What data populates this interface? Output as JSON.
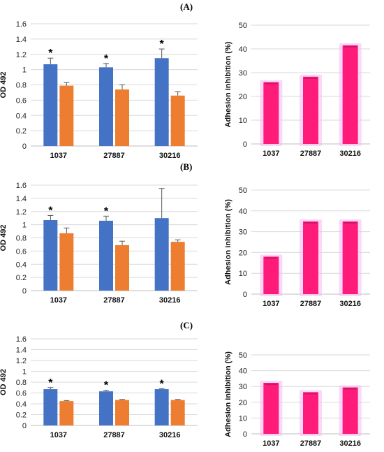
{
  "figure": {
    "panel_labels": [
      "(A)",
      "(B)",
      "(C)"
    ]
  },
  "colors": {
    "od_series_1": "#4472C4",
    "od_series_2": "#ED7D31",
    "inhibition_bar": "#FF1B7A",
    "inhibition_glow": "#F7B8F2",
    "error_bar": "#555555",
    "gridline": "#D9D9D9"
  },
  "chart_data": [
    {
      "id": "A-od",
      "type": "bar",
      "ylabel": "OD 492",
      "xlabel": "",
      "categories": [
        "1037",
        "27887",
        "30216"
      ],
      "ylim": [
        0,
        1.6
      ],
      "yticks": [
        "0",
        "0.2",
        "0.4",
        "0.6",
        "0.8",
        "1",
        "1.2",
        "1.4",
        "1.6"
      ],
      "grid": true,
      "series": [
        {
          "values": [
            1.07,
            1.03,
            1.15
          ],
          "errors": [
            0.08,
            0.05,
            0.12
          ]
        },
        {
          "values": [
            0.79,
            0.74,
            0.66
          ],
          "errors": [
            0.04,
            0.06,
            0.05
          ]
        }
      ],
      "annotations": [
        "*",
        "*",
        "*"
      ]
    },
    {
      "id": "A-inhibition",
      "type": "bar",
      "ylabel": "Adhesion inhibition (%)",
      "xlabel": "",
      "categories": [
        "1037",
        "27887",
        "30216"
      ],
      "values": [
        26,
        28.3,
        41.5
      ],
      "ylim": [
        0,
        50
      ],
      "yticks": [
        "0",
        "10",
        "20",
        "30",
        "40",
        "50"
      ],
      "grid": true
    },
    {
      "id": "B-od",
      "type": "bar",
      "ylabel": "OD 492",
      "xlabel": "",
      "categories": [
        "1037",
        "27887",
        "30216"
      ],
      "ylim": [
        0,
        1.6
      ],
      "yticks": [
        "0",
        "0.2",
        "0.4",
        "0.6",
        "0.8",
        "1",
        "1.2",
        "1.4",
        "1.6"
      ],
      "grid": true,
      "series": [
        {
          "values": [
            1.07,
            1.06,
            1.1
          ],
          "errors": [
            0.07,
            0.07,
            0.45
          ]
        },
        {
          "values": [
            0.87,
            0.69,
            0.74
          ],
          "errors": [
            0.08,
            0.06,
            0.03
          ]
        }
      ],
      "annotations": [
        "*",
        "*",
        ""
      ]
    },
    {
      "id": "B-inhibition",
      "type": "bar",
      "ylabel": "Adhesion inhibition (%)",
      "xlabel": "",
      "categories": [
        "1037",
        "27887",
        "30216"
      ],
      "values": [
        18,
        34.9,
        34.9
      ],
      "ylim": [
        0,
        50
      ],
      "yticks": [
        "0",
        "10",
        "20",
        "30",
        "40",
        "50"
      ],
      "grid": true
    },
    {
      "id": "C-od",
      "type": "bar",
      "ylabel": "OD 492",
      "xlabel": "",
      "categories": [
        "1037",
        "27887",
        "30216"
      ],
      "ylim": [
        0,
        1.6
      ],
      "yticks": [
        "0",
        "0.2",
        "0.4",
        "0.6",
        "0.8",
        "1",
        "1.2",
        "1.4",
        "1.6"
      ],
      "grid": true,
      "series": [
        {
          "values": [
            0.67,
            0.63,
            0.67
          ],
          "errors": [
            0.03,
            0.02,
            0.01
          ]
        },
        {
          "values": [
            0.45,
            0.47,
            0.47
          ],
          "errors": [
            0.01,
            0.01,
            0.01
          ]
        }
      ],
      "annotations": [
        "*",
        "*",
        "*"
      ]
    },
    {
      "id": "C-inhibition",
      "type": "bar",
      "ylabel": "Adhesion inhibition (%)",
      "xlabel": "",
      "categories": [
        "1037",
        "27887",
        "30216"
      ],
      "values": [
        32.3,
        26.4,
        29.4
      ],
      "ylim": [
        0,
        50
      ],
      "yticks": [
        "0",
        "10",
        "20",
        "30",
        "40",
        "50"
      ],
      "grid": true
    }
  ]
}
